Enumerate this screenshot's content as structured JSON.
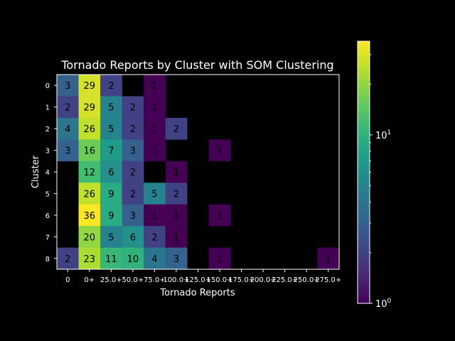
{
  "chart_data": {
    "type": "heatmap",
    "title": "Tornado Reports by Cluster with SOM Clustering",
    "xlabel": "Tornado Reports",
    "ylabel": "Cluster",
    "x_categories": [
      "0",
      "0+",
      "25.0+",
      "50.0+",
      "75.0+",
      "100.0+",
      "125.0+",
      "150.0+",
      "175.0+",
      "200.0+",
      "225.0+",
      "250.0+",
      "275.0+"
    ],
    "y_categories": [
      "0",
      "1",
      "2",
      "3",
      "4",
      "5",
      "6",
      "7",
      "8"
    ],
    "values": [
      [
        3,
        29,
        2,
        null,
        1,
        null,
        null,
        null,
        null,
        null,
        null,
        null,
        null
      ],
      [
        2,
        29,
        5,
        2,
        1,
        null,
        null,
        null,
        null,
        null,
        null,
        null,
        null
      ],
      [
        4,
        26,
        5,
        2,
        1,
        2,
        null,
        null,
        null,
        null,
        null,
        null,
        null
      ],
      [
        3,
        16,
        7,
        3,
        1,
        null,
        null,
        1,
        null,
        null,
        null,
        null,
        null
      ],
      [
        null,
        12,
        6,
        2,
        null,
        1,
        null,
        null,
        null,
        null,
        null,
        null,
        null
      ],
      [
        null,
        26,
        9,
        2,
        5,
        2,
        null,
        null,
        null,
        null,
        null,
        null,
        null
      ],
      [
        null,
        36,
        9,
        3,
        1,
        1,
        null,
        1,
        null,
        null,
        null,
        null,
        null
      ],
      [
        null,
        20,
        5,
        6,
        2,
        1,
        null,
        null,
        null,
        null,
        null,
        null,
        null
      ],
      [
        2,
        23,
        11,
        10,
        4,
        3,
        null,
        1,
        null,
        null,
        null,
        null,
        1
      ]
    ],
    "colormap": "viridis",
    "color_scale": "log",
    "color_range": [
      1,
      36
    ],
    "colorbar_ticks": [
      {
        "value": 1,
        "base": "10",
        "exp": "0"
      },
      {
        "value": 10,
        "base": "10",
        "exp": "1"
      }
    ],
    "grid": false,
    "background": "#000000",
    "text_color": "#ffffff"
  }
}
